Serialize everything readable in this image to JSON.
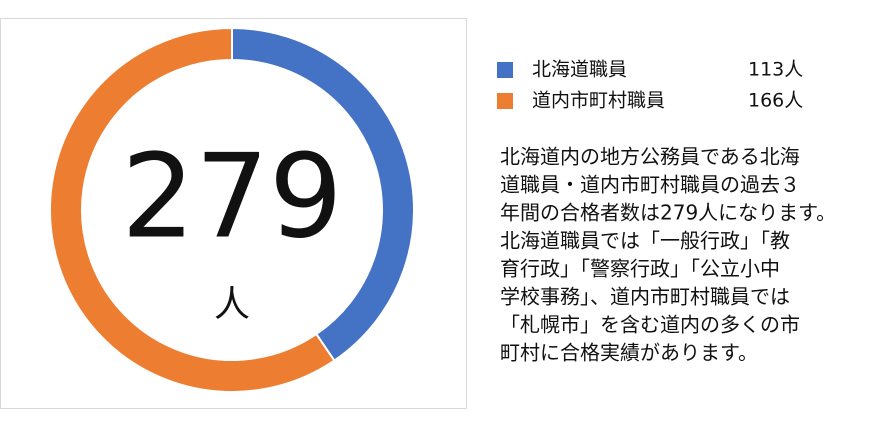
{
  "chart_data": {
    "type": "donut",
    "categories": [
      "北海道職員",
      "道内市町村職員"
    ],
    "values": [
      113,
      166
    ],
    "value_labels": [
      "113人",
      "166人"
    ],
    "colors": [
      "#4472c4",
      "#ed7d31"
    ],
    "center_text": "279",
    "center_unit": "人"
  },
  "description": [
    "北海道内の地方公務員である北海",
    "道職員・道内市町村職員の過去３",
    "年間の合格者数は279人になります。",
    "北海道職員では「一般行政」「教",
    "育行政」「警察行政」「公立小中",
    "学校事務」、道内市町村職員では",
    "「札幌市」を含む道内の多くの市",
    "町村に合格実績があります。"
  ]
}
